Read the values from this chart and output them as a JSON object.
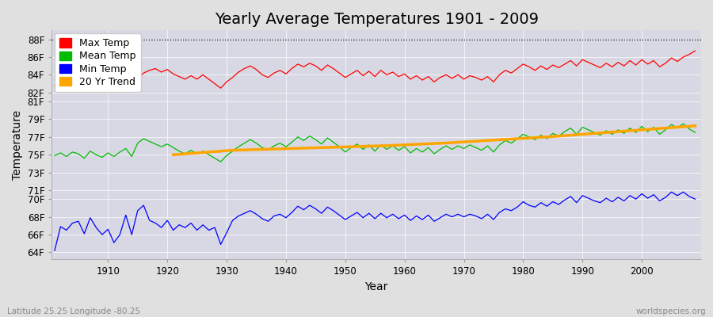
{
  "title": "Yearly Average Temperatures 1901 - 2009",
  "xlabel": "Year",
  "ylabel": "Temperature",
  "x_start": 1901,
  "x_end": 2009,
  "y_ticks": [
    64,
    66,
    68,
    70,
    71,
    73,
    75,
    77,
    79,
    81,
    82,
    84,
    86,
    88
  ],
  "y_tick_labels": [
    "64F",
    "66F",
    "68F",
    "70F",
    "71F",
    "73F",
    "75F",
    "77F",
    "79F",
    "81F",
    "82F",
    "84F",
    "86F",
    "88F"
  ],
  "ylim": [
    63.2,
    89.0
  ],
  "xlim": [
    1900.5,
    2010
  ],
  "dotted_line_y": 88,
  "fig_bg_color": "#e0e0e0",
  "plot_bg_color": "#d8d8e4",
  "max_color": "#ff0000",
  "mean_color": "#00bb00",
  "min_color": "#0000ff",
  "trend_color": "#ffa500",
  "title_fontsize": 14,
  "axis_fontsize": 8.5,
  "label_fontsize": 10,
  "legend_fontsize": 9,
  "footer_left": "Latitude 25.25 Longitude -80.25",
  "footer_right": "worldspecies.org",
  "max_temps": [
    82.8,
    83.0,
    82.5,
    82.9,
    83.1,
    82.3,
    82.7,
    82.5,
    82.1,
    82.6,
    82.2,
    82.7,
    83.0,
    82.3,
    83.5,
    84.2,
    84.5,
    84.7,
    84.3,
    84.6,
    84.1,
    83.8,
    83.5,
    83.9,
    83.5,
    84.0,
    83.5,
    83.0,
    82.5,
    83.2,
    83.7,
    84.3,
    84.7,
    85.0,
    84.6,
    84.0,
    83.7,
    84.2,
    84.5,
    84.1,
    84.7,
    85.2,
    84.9,
    85.3,
    85.0,
    84.5,
    85.1,
    84.7,
    84.2,
    83.7,
    84.1,
    84.5,
    83.9,
    84.4,
    83.8,
    84.5,
    84.0,
    84.3,
    83.8,
    84.1,
    83.5,
    83.9,
    83.4,
    83.8,
    83.2,
    83.7,
    84.0,
    83.6,
    84.0,
    83.5,
    83.9,
    83.7,
    83.4,
    83.8,
    83.2,
    84.0,
    84.5,
    84.2,
    84.7,
    85.2,
    84.9,
    84.5,
    85.0,
    84.6,
    85.1,
    84.8,
    85.2,
    85.6,
    85.0,
    85.7,
    85.4,
    85.1,
    84.8,
    85.3,
    84.9,
    85.4,
    85.0,
    85.6,
    85.1,
    85.7,
    85.2,
    85.6,
    84.9,
    85.3,
    85.9,
    85.5,
    86.0,
    86.3,
    86.7
  ],
  "mean_temps": [
    74.9,
    75.2,
    74.8,
    75.3,
    75.1,
    74.6,
    75.4,
    75.0,
    74.7,
    75.2,
    74.8,
    75.3,
    75.7,
    74.8,
    76.3,
    76.8,
    76.5,
    76.2,
    75.9,
    76.2,
    75.8,
    75.4,
    75.1,
    75.5,
    75.1,
    75.4,
    75.0,
    74.6,
    74.2,
    74.9,
    75.4,
    75.9,
    76.3,
    76.7,
    76.3,
    75.8,
    75.5,
    76.0,
    76.3,
    75.9,
    76.4,
    77.0,
    76.6,
    77.1,
    76.7,
    76.2,
    76.9,
    76.4,
    75.9,
    75.3,
    75.8,
    76.2,
    75.6,
    76.1,
    75.4,
    76.1,
    75.6,
    76.0,
    75.5,
    75.9,
    75.2,
    75.7,
    75.3,
    75.8,
    75.1,
    75.6,
    76.0,
    75.6,
    76.0,
    75.7,
    76.1,
    75.8,
    75.5,
    76.0,
    75.3,
    76.1,
    76.6,
    76.3,
    76.8,
    77.3,
    77.0,
    76.7,
    77.2,
    76.8,
    77.4,
    77.1,
    77.6,
    78.0,
    77.3,
    78.1,
    77.8,
    77.5,
    77.2,
    77.7,
    77.3,
    77.8,
    77.4,
    78.0,
    77.5,
    78.2,
    77.6,
    78.1,
    77.3,
    77.8,
    78.4,
    78.0,
    78.5,
    77.9,
    77.5
  ],
  "min_temps": [
    64.2,
    66.9,
    66.5,
    67.3,
    67.5,
    66.1,
    67.9,
    66.8,
    66.0,
    66.6,
    65.1,
    66.0,
    68.2,
    66.0,
    68.7,
    69.3,
    67.6,
    67.3,
    66.8,
    67.6,
    66.5,
    67.1,
    66.8,
    67.3,
    66.5,
    67.1,
    66.5,
    66.8,
    64.9,
    66.2,
    67.6,
    68.1,
    68.4,
    68.7,
    68.3,
    67.8,
    67.5,
    68.1,
    68.3,
    67.9,
    68.5,
    69.2,
    68.8,
    69.3,
    68.9,
    68.4,
    69.1,
    68.7,
    68.2,
    67.7,
    68.1,
    68.5,
    67.9,
    68.4,
    67.8,
    68.4,
    67.9,
    68.3,
    67.8,
    68.2,
    67.6,
    68.1,
    67.7,
    68.2,
    67.5,
    67.9,
    68.3,
    68.0,
    68.3,
    68.0,
    68.3,
    68.1,
    67.8,
    68.3,
    67.7,
    68.5,
    68.9,
    68.7,
    69.1,
    69.7,
    69.3,
    69.1,
    69.6,
    69.2,
    69.7,
    69.4,
    69.9,
    70.3,
    69.6,
    70.4,
    70.1,
    69.8,
    69.6,
    70.1,
    69.7,
    70.2,
    69.8,
    70.4,
    70.0,
    70.6,
    70.1,
    70.5,
    69.8,
    70.2,
    70.8,
    70.4,
    70.8,
    70.3,
    70.0
  ],
  "trend_x": [
    1921,
    1922,
    1923,
    1924,
    1925,
    1926,
    1927,
    1928,
    1929,
    1930,
    1931,
    1932,
    1933,
    1934,
    1935,
    1936,
    1937,
    1938,
    1939,
    1940,
    1941,
    1942,
    1943,
    1944,
    1945,
    1946,
    1947,
    1948,
    1949,
    1950,
    1951,
    1952,
    1953,
    1954,
    1955,
    1956,
    1957,
    1958,
    1959,
    1960,
    1961,
    1962,
    1963,
    1964,
    1965,
    1966,
    1967,
    1968,
    1969,
    1970,
    1971,
    1972,
    1973,
    1974,
    1975,
    1976,
    1977,
    1978,
    1979,
    1980,
    1981,
    1982,
    1983,
    1984,
    1985,
    1986,
    1987,
    1988,
    1989,
    1990,
    1991,
    1992,
    1993,
    1994,
    1995,
    1996,
    1997,
    1998,
    1999,
    2000,
    2001,
    2002,
    2003,
    2004,
    2005,
    2006,
    2007,
    2008,
    2009
  ],
  "trend_y": [
    75.0,
    75.05,
    75.1,
    75.15,
    75.2,
    75.25,
    75.3,
    75.35,
    75.4,
    75.45,
    75.5,
    75.52,
    75.54,
    75.56,
    75.58,
    75.6,
    75.62,
    75.64,
    75.66,
    75.68,
    75.7,
    75.72,
    75.74,
    75.76,
    75.78,
    75.8,
    75.82,
    75.84,
    75.86,
    75.88,
    75.9,
    75.92,
    75.94,
    75.96,
    75.98,
    76.0,
    76.02,
    76.05,
    76.08,
    76.11,
    76.14,
    76.17,
    76.2,
    76.23,
    76.26,
    76.29,
    76.32,
    76.36,
    76.4,
    76.44,
    76.48,
    76.52,
    76.56,
    76.6,
    76.64,
    76.68,
    76.72,
    76.76,
    76.8,
    76.84,
    76.88,
    76.92,
    76.96,
    77.0,
    77.05,
    77.1,
    77.15,
    77.2,
    77.25,
    77.3,
    77.35,
    77.4,
    77.45,
    77.5,
    77.55,
    77.6,
    77.65,
    77.7,
    77.75,
    77.8,
    77.85,
    77.9,
    77.95,
    78.0,
    78.05,
    78.1,
    78.15,
    78.2,
    78.25
  ]
}
